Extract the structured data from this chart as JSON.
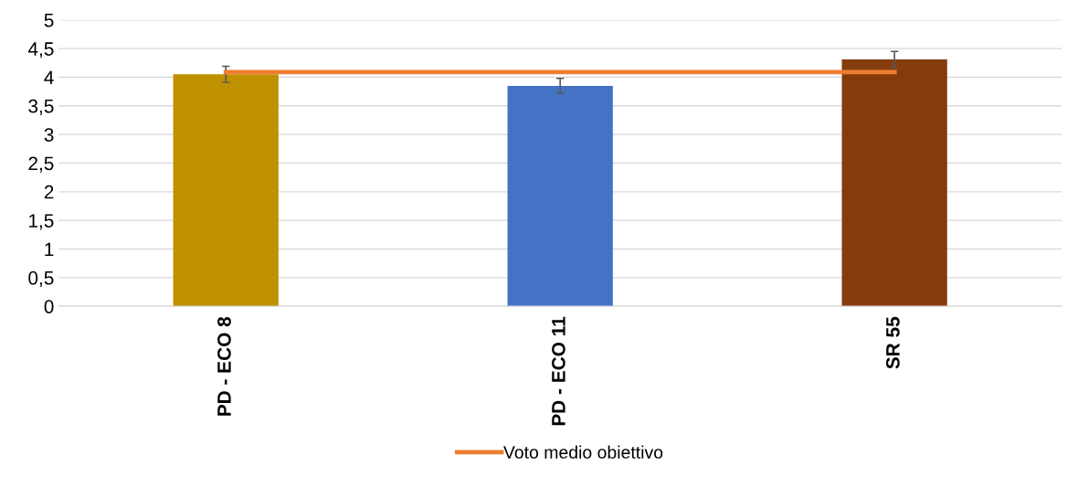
{
  "chart_data": {
    "type": "bar",
    "categories": [
      "PD - ECO 8",
      "PD - ECO 11",
      "SR 55"
    ],
    "series": [
      {
        "colors": [
          "#bf9000",
          "#4472c4",
          "#843c0c"
        ],
        "values": [
          4.05,
          3.85,
          4.31
        ],
        "errors": [
          0.14,
          0.13,
          0.14
        ]
      },
      {
        "type": "line",
        "name": "Voto medio obiettivo",
        "color": "#ed7d31",
        "values": [
          4.09,
          4.09,
          4.09
        ],
        "marker": "none"
      }
    ],
    "ylim": [
      0,
      5
    ],
    "yticks": [
      0,
      {
        "value": 0.5,
        "label": "0,5"
      },
      1,
      {
        "value": 1.5,
        "label": "1,5"
      },
      2,
      {
        "value": 2.5,
        "label": "2,5"
      },
      3,
      {
        "value": 3.5,
        "label": "3,5"
      },
      4,
      {
        "value": 4.5,
        "label": "4,5"
      },
      5
    ],
    "grid": "y",
    "legend": "bottom"
  }
}
